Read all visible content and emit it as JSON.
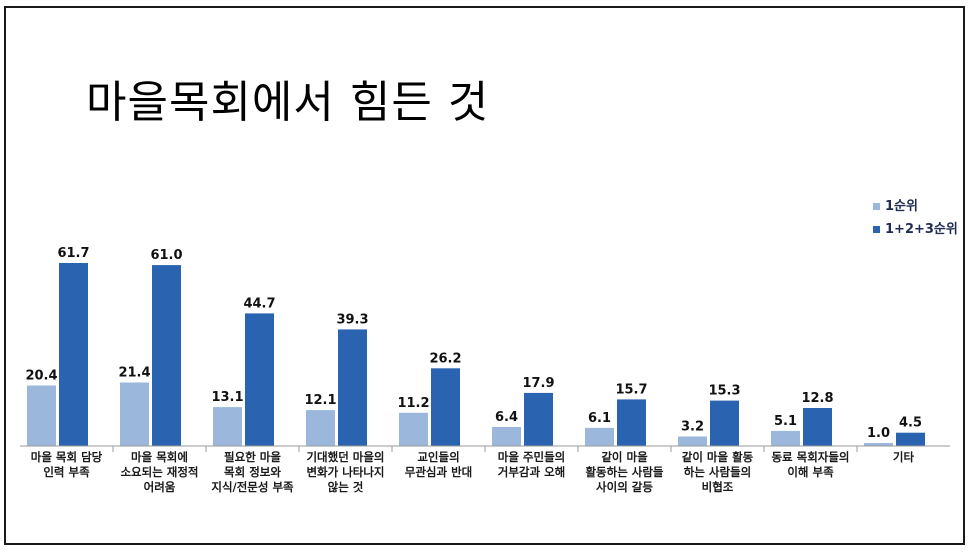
{
  "chart_data": {
    "type": "bar",
    "title": "마을목회에서 힘든 것",
    "categories": [
      [
        "마을 목회 담당",
        "인력 부족"
      ],
      [
        "마을 목회에",
        "소요되는 재정적",
        "어려움"
      ],
      [
        "필요한 마을",
        "목회 정보와",
        "지식/전문성 부족"
      ],
      [
        "기대했던 마을의",
        "변화가 나타나지",
        "않는 것"
      ],
      [
        "교인들의",
        "무관심과 반대"
      ],
      [
        "마을 주민들의",
        "거부감과 오해"
      ],
      [
        "같이 마을",
        "활동하는 사람들",
        "사이의 갈등"
      ],
      [
        "같이 마을 활동",
        "하는 사람들의",
        "비협조"
      ],
      [
        "동료 목회자들의",
        "이해 부족"
      ],
      [
        "기타"
      ]
    ],
    "series": [
      {
        "name": "1순위",
        "color": "#9bb7dc",
        "values": [
          20.4,
          21.4,
          13.1,
          12.1,
          11.2,
          6.4,
          6.1,
          3.2,
          5.1,
          1.0
        ],
        "labels": [
          "20.4",
          "21.4",
          "13.1",
          "12.1",
          "11.2",
          "6.4",
          "6.1",
          "3.2",
          "5.1",
          "1.0"
        ]
      },
      {
        "name": "1+2+3순위",
        "color": "#2a63b0",
        "values": [
          61.7,
          61.0,
          44.7,
          39.3,
          26.2,
          17.9,
          15.7,
          15.3,
          12.8,
          4.5
        ],
        "labels": [
          "61.7",
          "61.0",
          "44.7",
          "39.3",
          "26.2",
          "17.9",
          "15.7",
          "15.3",
          "12.8",
          "4.5"
        ]
      }
    ],
    "ylim": [
      0,
      70
    ],
    "grid": false,
    "legend_position": "top-right"
  }
}
